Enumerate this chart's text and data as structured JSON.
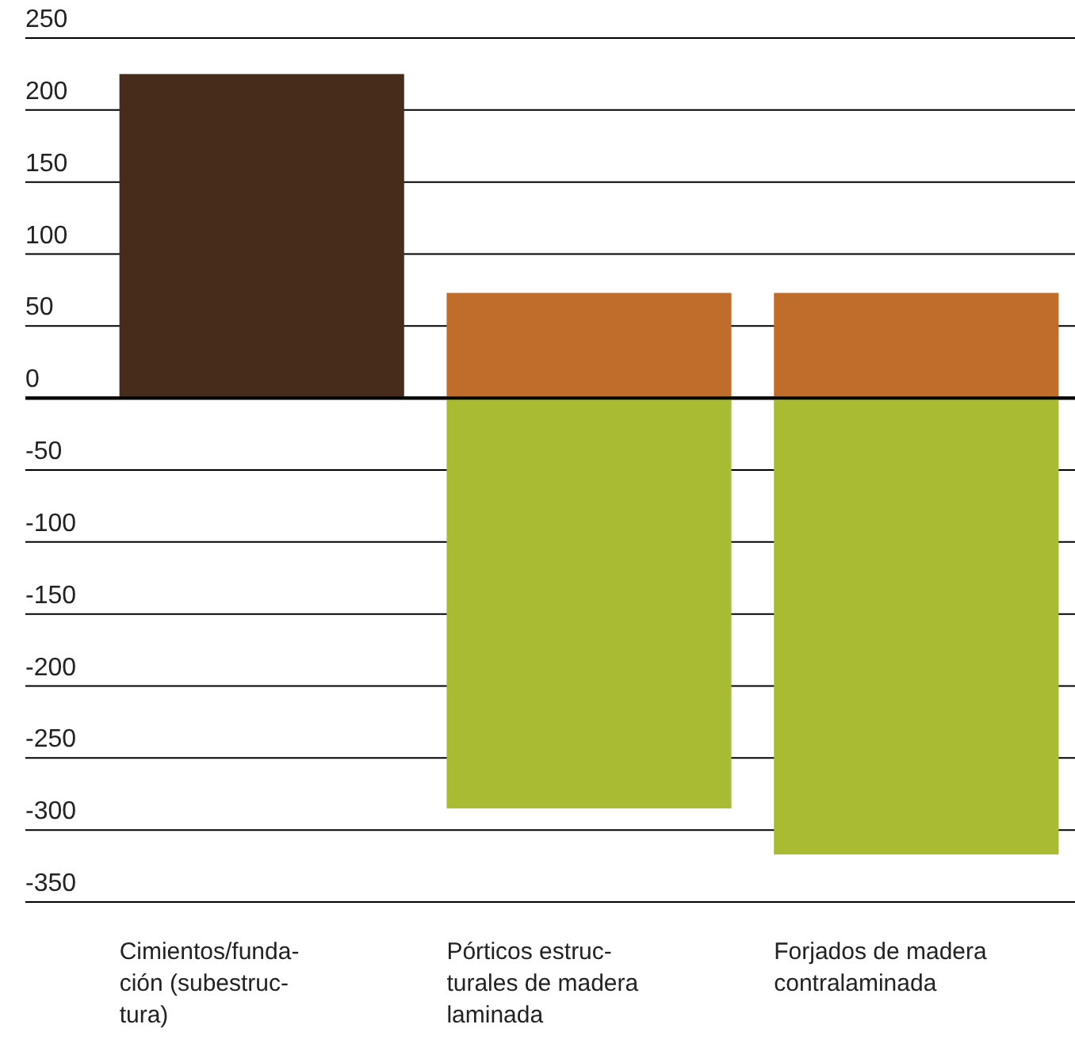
{
  "chart_data": {
    "type": "bar",
    "stacked": true,
    "categories": [
      "Cimientos/funda-\nción (subestruc-\ntura)",
      "Pórticos estruc-\nturales de madera\nlaminada",
      "Forjados de madera\ncontralaminada"
    ],
    "series": [
      {
        "color": "#472c1b",
        "values": [
          225,
          null,
          null
        ]
      },
      {
        "color": "#c06c2b",
        "values": [
          null,
          73,
          73
        ]
      },
      {
        "color": "#a8bb33",
        "values": [
          null,
          -285,
          -317
        ]
      }
    ],
    "ylim": [
      -350,
      250
    ],
    "yticks": [
      -350,
      -300,
      -250,
      -200,
      -150,
      -100,
      -50,
      0,
      50,
      100,
      150,
      200,
      250
    ],
    "grid": "y"
  }
}
